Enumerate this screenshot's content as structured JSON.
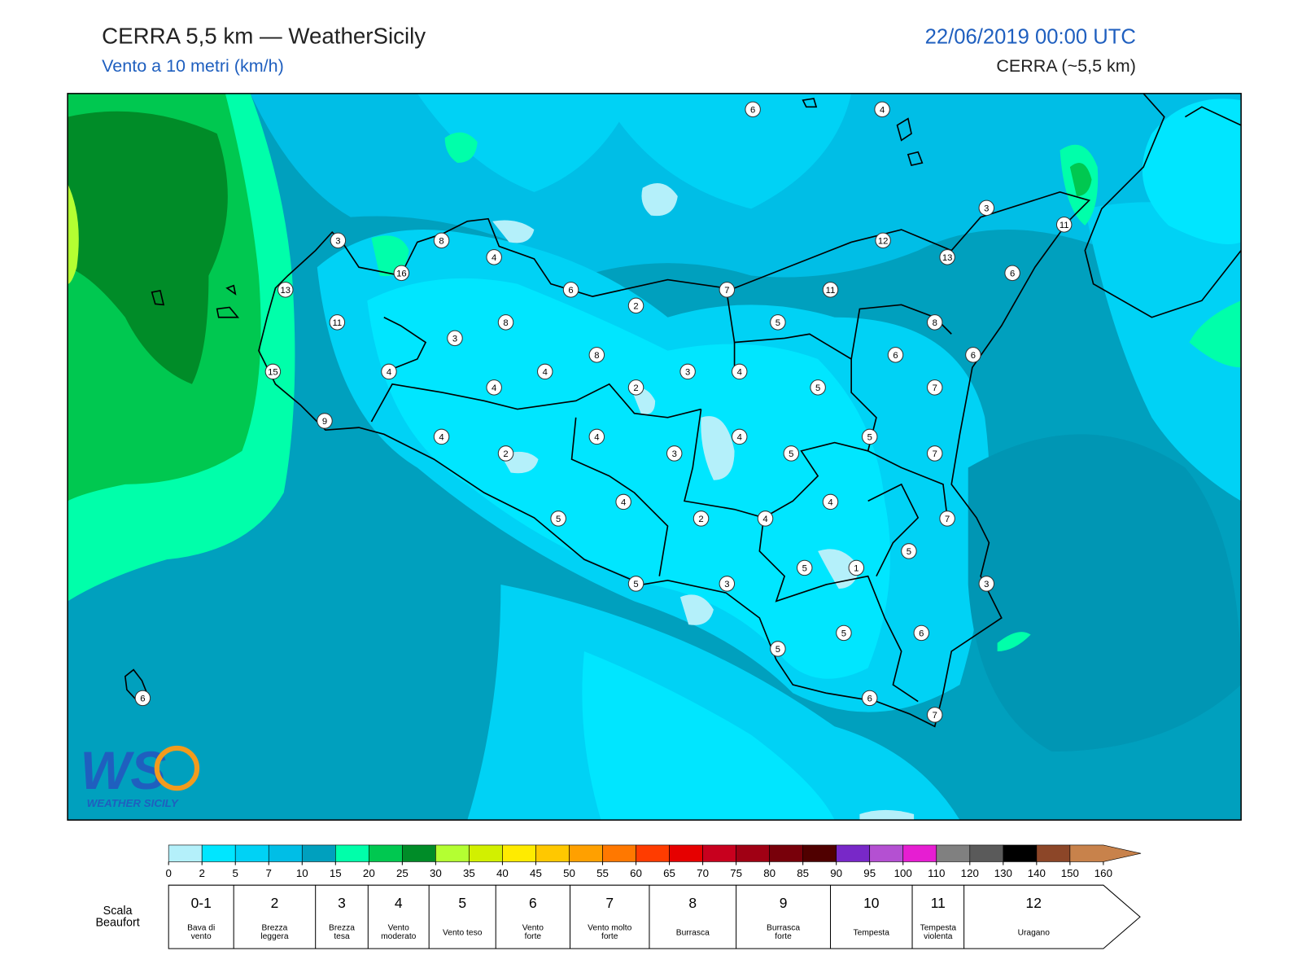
{
  "header": {
    "title": "CERRA 5,5 km — WeatherSicily",
    "subtitle": "Vento a 10 metri (km/h)",
    "datetime": "22/06/2019 00:00 UTC",
    "model": "CERRA (~5,5 km)"
  },
  "stations": [
    6,
    4,
    3,
    11,
    3,
    8,
    12,
    13,
    4,
    16,
    6,
    13,
    6,
    7,
    11,
    2,
    11,
    8,
    5,
    8,
    3,
    8,
    6,
    6,
    15,
    4,
    4,
    3,
    4,
    4,
    2,
    5,
    7,
    9,
    4,
    4,
    4,
    5,
    2,
    3,
    5,
    7,
    4,
    4,
    5,
    2,
    4,
    7,
    5,
    5,
    1,
    5,
    3,
    3,
    5,
    6,
    5,
    6,
    6,
    7
  ],
  "colorbar": {
    "ticks": [
      0,
      2,
      5,
      7,
      10,
      15,
      20,
      25,
      30,
      35,
      40,
      45,
      50,
      55,
      60,
      65,
      70,
      75,
      80,
      85,
      90,
      95,
      100,
      110,
      120,
      130,
      140,
      150,
      160
    ],
    "colors": [
      "#b4f0fa",
      "#00e6ff",
      "#00d2f5",
      "#00bee6",
      "#00a0be",
      "#00ffaa",
      "#00c850",
      "#008c28",
      "#b4ff32",
      "#d2f000",
      "#ffeb00",
      "#ffc800",
      "#ffa000",
      "#ff7800",
      "#ff3c00",
      "#e60000",
      "#c8001e",
      "#a00014",
      "#78000a",
      "#500000",
      "#7828c8",
      "#b450d2",
      "#e61ed2",
      "#808080",
      "#5a5a5a",
      "#000000",
      "#8c4628",
      "#c8824b"
    ]
  },
  "beaufort": {
    "label": [
      "Scala",
      "Beaufort"
    ],
    "levels": [
      {
        "force": "0-1",
        "name": [
          "Bava di",
          "vento"
        ]
      },
      {
        "force": 2,
        "name": [
          "Brezza",
          "leggera"
        ]
      },
      {
        "force": 3,
        "name": [
          "Brezza",
          "tesa"
        ]
      },
      {
        "force": 4,
        "name": [
          "Vento",
          "moderato"
        ]
      },
      {
        "force": 5,
        "name": [
          "Vento teso"
        ]
      },
      {
        "force": 6,
        "name": [
          "Vento",
          "forte"
        ]
      },
      {
        "force": 7,
        "name": [
          "Vento molto",
          "forte"
        ]
      },
      {
        "force": 8,
        "name": [
          "Burrasca"
        ]
      },
      {
        "force": 9,
        "name": [
          "Burrasca",
          "forte"
        ]
      },
      {
        "force": 10,
        "name": [
          "Tempesta"
        ]
      },
      {
        "force": 11,
        "name": [
          "Tempesta",
          "violenta"
        ]
      },
      {
        "force": 12,
        "name": [
          "Uragano"
        ]
      }
    ]
  },
  "logo": {
    "mark": "WS",
    "text": "WEATHER SICILY"
  }
}
